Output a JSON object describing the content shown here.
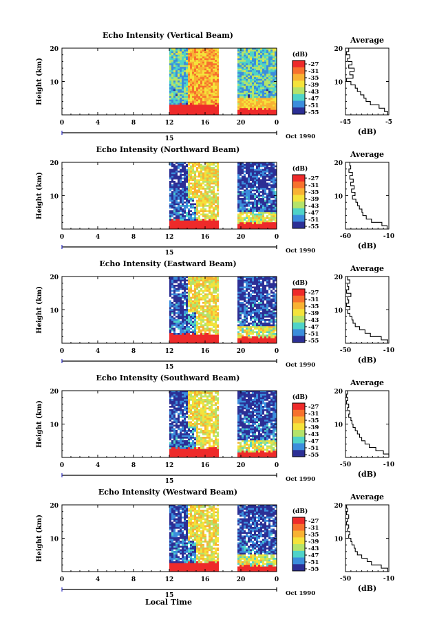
{
  "xlabel": "Local Time",
  "date_label": "Oct 1990",
  "chart_data": [
    {
      "type": "heatmap",
      "title": "Echo Intensity (Vertical Beam)",
      "ylabel": "Height (km)",
      "xticks": [
        "0",
        "4",
        "8",
        "12",
        "16",
        "20",
        "0"
      ],
      "yticks": [
        "20",
        "10"
      ],
      "day_marker": "15",
      "xlim": [
        0,
        24
      ],
      "ylim": [
        0,
        20
      ],
      "data_start_hour": 12,
      "gap_hours": [
        17.7,
        19.5
      ],
      "colorbar": {
        "unit": "(dB)",
        "levels": [
          "-27",
          "-31",
          "-35",
          "-39",
          "-43",
          "-47",
          "-51",
          "-55"
        ]
      },
      "profile": {
        "title": "Average",
        "xlabel": "(dB)",
        "xticks": [
          "-45",
          "-5"
        ],
        "xlim": [
          -45,
          -5
        ],
        "yticks": [
          "20",
          "10"
        ],
        "heights": [
          1,
          2,
          3,
          4,
          5,
          6,
          7,
          8,
          9,
          10,
          11,
          12,
          13,
          14,
          15,
          16,
          17,
          18,
          19,
          20
        ],
        "values": [
          -6,
          -9,
          -14,
          -22,
          -26,
          -28,
          -31,
          -34,
          -36,
          -40,
          -44,
          -38,
          -41,
          -37,
          -42,
          -39,
          -43,
          -41,
          -44,
          -42
        ]
      }
    },
    {
      "type": "heatmap",
      "title": "Echo Intensity (Northward Beam)",
      "ylabel": "Height (km)",
      "xticks": [
        "0",
        "4",
        "8",
        "12",
        "16",
        "20",
        "0"
      ],
      "yticks": [
        "20",
        "10"
      ],
      "day_marker": "15",
      "xlim": [
        0,
        24
      ],
      "ylim": [
        0,
        20
      ],
      "data_start_hour": 12,
      "gap_hours": [
        17.7,
        19.5
      ],
      "colorbar": {
        "unit": "(dB)",
        "levels": [
          "-27",
          "-31",
          "-35",
          "-39",
          "-43",
          "-47",
          "-51",
          "-55"
        ]
      },
      "profile": {
        "title": "Average",
        "xlabel": "(dB)",
        "xticks": [
          "-60",
          "-10"
        ],
        "xlim": [
          -60,
          -10
        ],
        "yticks": [
          "20",
          "10"
        ],
        "heights": [
          1,
          2,
          3,
          4,
          5,
          6,
          7,
          8,
          9,
          10,
          11,
          12,
          13,
          14,
          15,
          16,
          17,
          18,
          19,
          20
        ],
        "values": [
          -12,
          -18,
          -30,
          -36,
          -40,
          -41,
          -44,
          -46,
          -48,
          -52,
          -49,
          -53,
          -50,
          -54,
          -51,
          -55,
          -52,
          -56,
          -54,
          -55
        ]
      }
    },
    {
      "type": "heatmap",
      "title": "Echo Intensity (Eastward Beam)",
      "ylabel": "Height (km)",
      "xticks": [
        "0",
        "4",
        "8",
        "12",
        "16",
        "20",
        "0"
      ],
      "yticks": [
        "20",
        "10"
      ],
      "day_marker": "15",
      "xlim": [
        0,
        24
      ],
      "ylim": [
        0,
        20
      ],
      "data_start_hour": 12,
      "gap_hours": [
        17.7,
        19.5
      ],
      "colorbar": {
        "unit": "(dB)",
        "levels": [
          "-27",
          "-31",
          "-35",
          "-39",
          "-43",
          "-47",
          "-51",
          "-55"
        ]
      },
      "profile": {
        "title": "Average",
        "xlabel": "(dB)",
        "xticks": [
          "-50",
          "-10"
        ],
        "xlim": [
          -50,
          -10
        ],
        "yticks": [
          "20",
          "10"
        ],
        "heights": [
          1,
          2,
          3,
          4,
          5,
          6,
          7,
          8,
          9,
          10,
          11,
          12,
          13,
          14,
          15,
          16,
          17,
          18,
          19,
          20
        ],
        "values": [
          -11,
          -17,
          -27,
          -32,
          -37,
          -41,
          -43,
          -44,
          -46,
          -48,
          -46,
          -49,
          -47,
          -48,
          -45,
          -49,
          -47,
          -48,
          -46,
          -48
        ]
      }
    },
    {
      "type": "heatmap",
      "title": "Echo Intensity (Southward Beam)",
      "ylabel": "Height (km)",
      "xticks": [
        "0",
        "4",
        "8",
        "12",
        "16",
        "20",
        "0"
      ],
      "yticks": [
        "20",
        "10"
      ],
      "day_marker": "15",
      "xlim": [
        0,
        24
      ],
      "ylim": [
        0,
        20
      ],
      "data_start_hour": 12,
      "gap_hours": [
        17.7,
        19.5
      ],
      "colorbar": {
        "unit": "(dB)",
        "levels": [
          "-27",
          "-31",
          "-35",
          "-39",
          "-43",
          "-47",
          "-51",
          "-55"
        ]
      },
      "profile": {
        "title": "Average",
        "xlabel": "(dB)",
        "xticks": [
          "-50",
          "-10"
        ],
        "xlim": [
          -50,
          -10
        ],
        "yticks": [
          "20",
          "10"
        ],
        "heights": [
          1,
          2,
          3,
          4,
          5,
          6,
          7,
          8,
          9,
          10,
          11,
          12,
          13,
          14,
          15,
          16,
          17,
          18,
          19,
          20
        ],
        "values": [
          -10,
          -15,
          -22,
          -28,
          -32,
          -35,
          -37,
          -39,
          -41,
          -43,
          -44,
          -45,
          -47,
          -46,
          -48,
          -47,
          -49,
          -48,
          -49,
          -48
        ]
      }
    },
    {
      "type": "heatmap",
      "title": "Echo Intensity (Westward Beam)",
      "ylabel": "Height (km)",
      "xticks": [
        "0",
        "4",
        "8",
        "12",
        "16",
        "20",
        "0"
      ],
      "yticks": [
        "20",
        "10"
      ],
      "day_marker": "15",
      "xlim": [
        0,
        24
      ],
      "ylim": [
        0,
        20
      ],
      "data_start_hour": 12,
      "gap_hours": [
        17.7,
        19.5
      ],
      "colorbar": {
        "unit": "(dB)",
        "levels": [
          "-27",
          "-31",
          "-35",
          "-39",
          "-43",
          "-47",
          "-51",
          "-55"
        ]
      },
      "profile": {
        "title": "Average",
        "xlabel": "(dB)",
        "xticks": [
          "-50",
          "-10"
        ],
        "xlim": [
          -50,
          -10
        ],
        "yticks": [
          "20",
          "10"
        ],
        "heights": [
          1,
          2,
          3,
          4,
          5,
          6,
          7,
          8,
          9,
          10,
          11,
          12,
          13,
          14,
          15,
          16,
          17,
          18,
          19,
          20
        ],
        "values": [
          -11,
          -17,
          -26,
          -30,
          -35,
          -39,
          -41,
          -42,
          -44,
          -45,
          -47,
          -46,
          -48,
          -47,
          -49,
          -48,
          -47,
          -49,
          -48,
          -49
        ]
      }
    }
  ]
}
